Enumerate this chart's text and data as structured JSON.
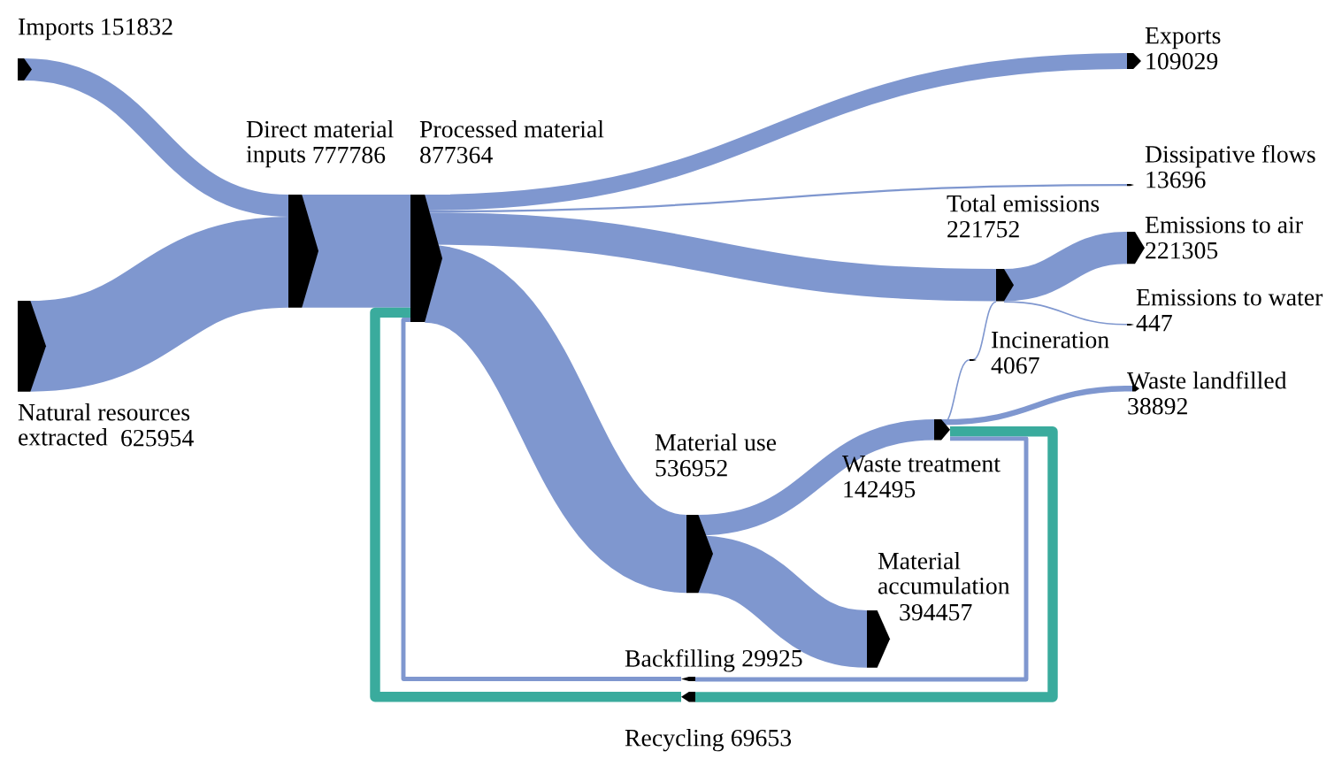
{
  "chart_data": {
    "type": "other",
    "categories": [
      "Imports",
      "Natural resources extracted",
      "Direct material inputs",
      "Processed material",
      "Exports",
      "Dissipative flows",
      "Total emissions",
      "Emissions to air",
      "Emissions to water",
      "Incineration",
      "Material use",
      "Waste treatment",
      "Waste landfilled",
      "Material accumulation",
      "Backfilling",
      "Recycling"
    ],
    "values": [
      151832,
      625954,
      777786,
      877364,
      109029,
      13696,
      221752,
      221305,
      447,
      4067,
      536952,
      142495,
      38892,
      394457,
      29925,
      69653
    ],
    "colors": [
      "#7f97cf",
      "#7f97cf",
      "#7f97cf",
      "#7f97cf",
      "#7f97cf",
      "#7f97cf",
      "#7f97cf",
      "#7f97cf",
      "#7f97cf",
      "#7f97cf",
      "#7f97cf",
      "#7f97cf",
      "#7f97cf",
      "#7f97cf",
      "#7f97cf",
      "#3aab9d"
    ],
    "data_labels": true
  }
}
